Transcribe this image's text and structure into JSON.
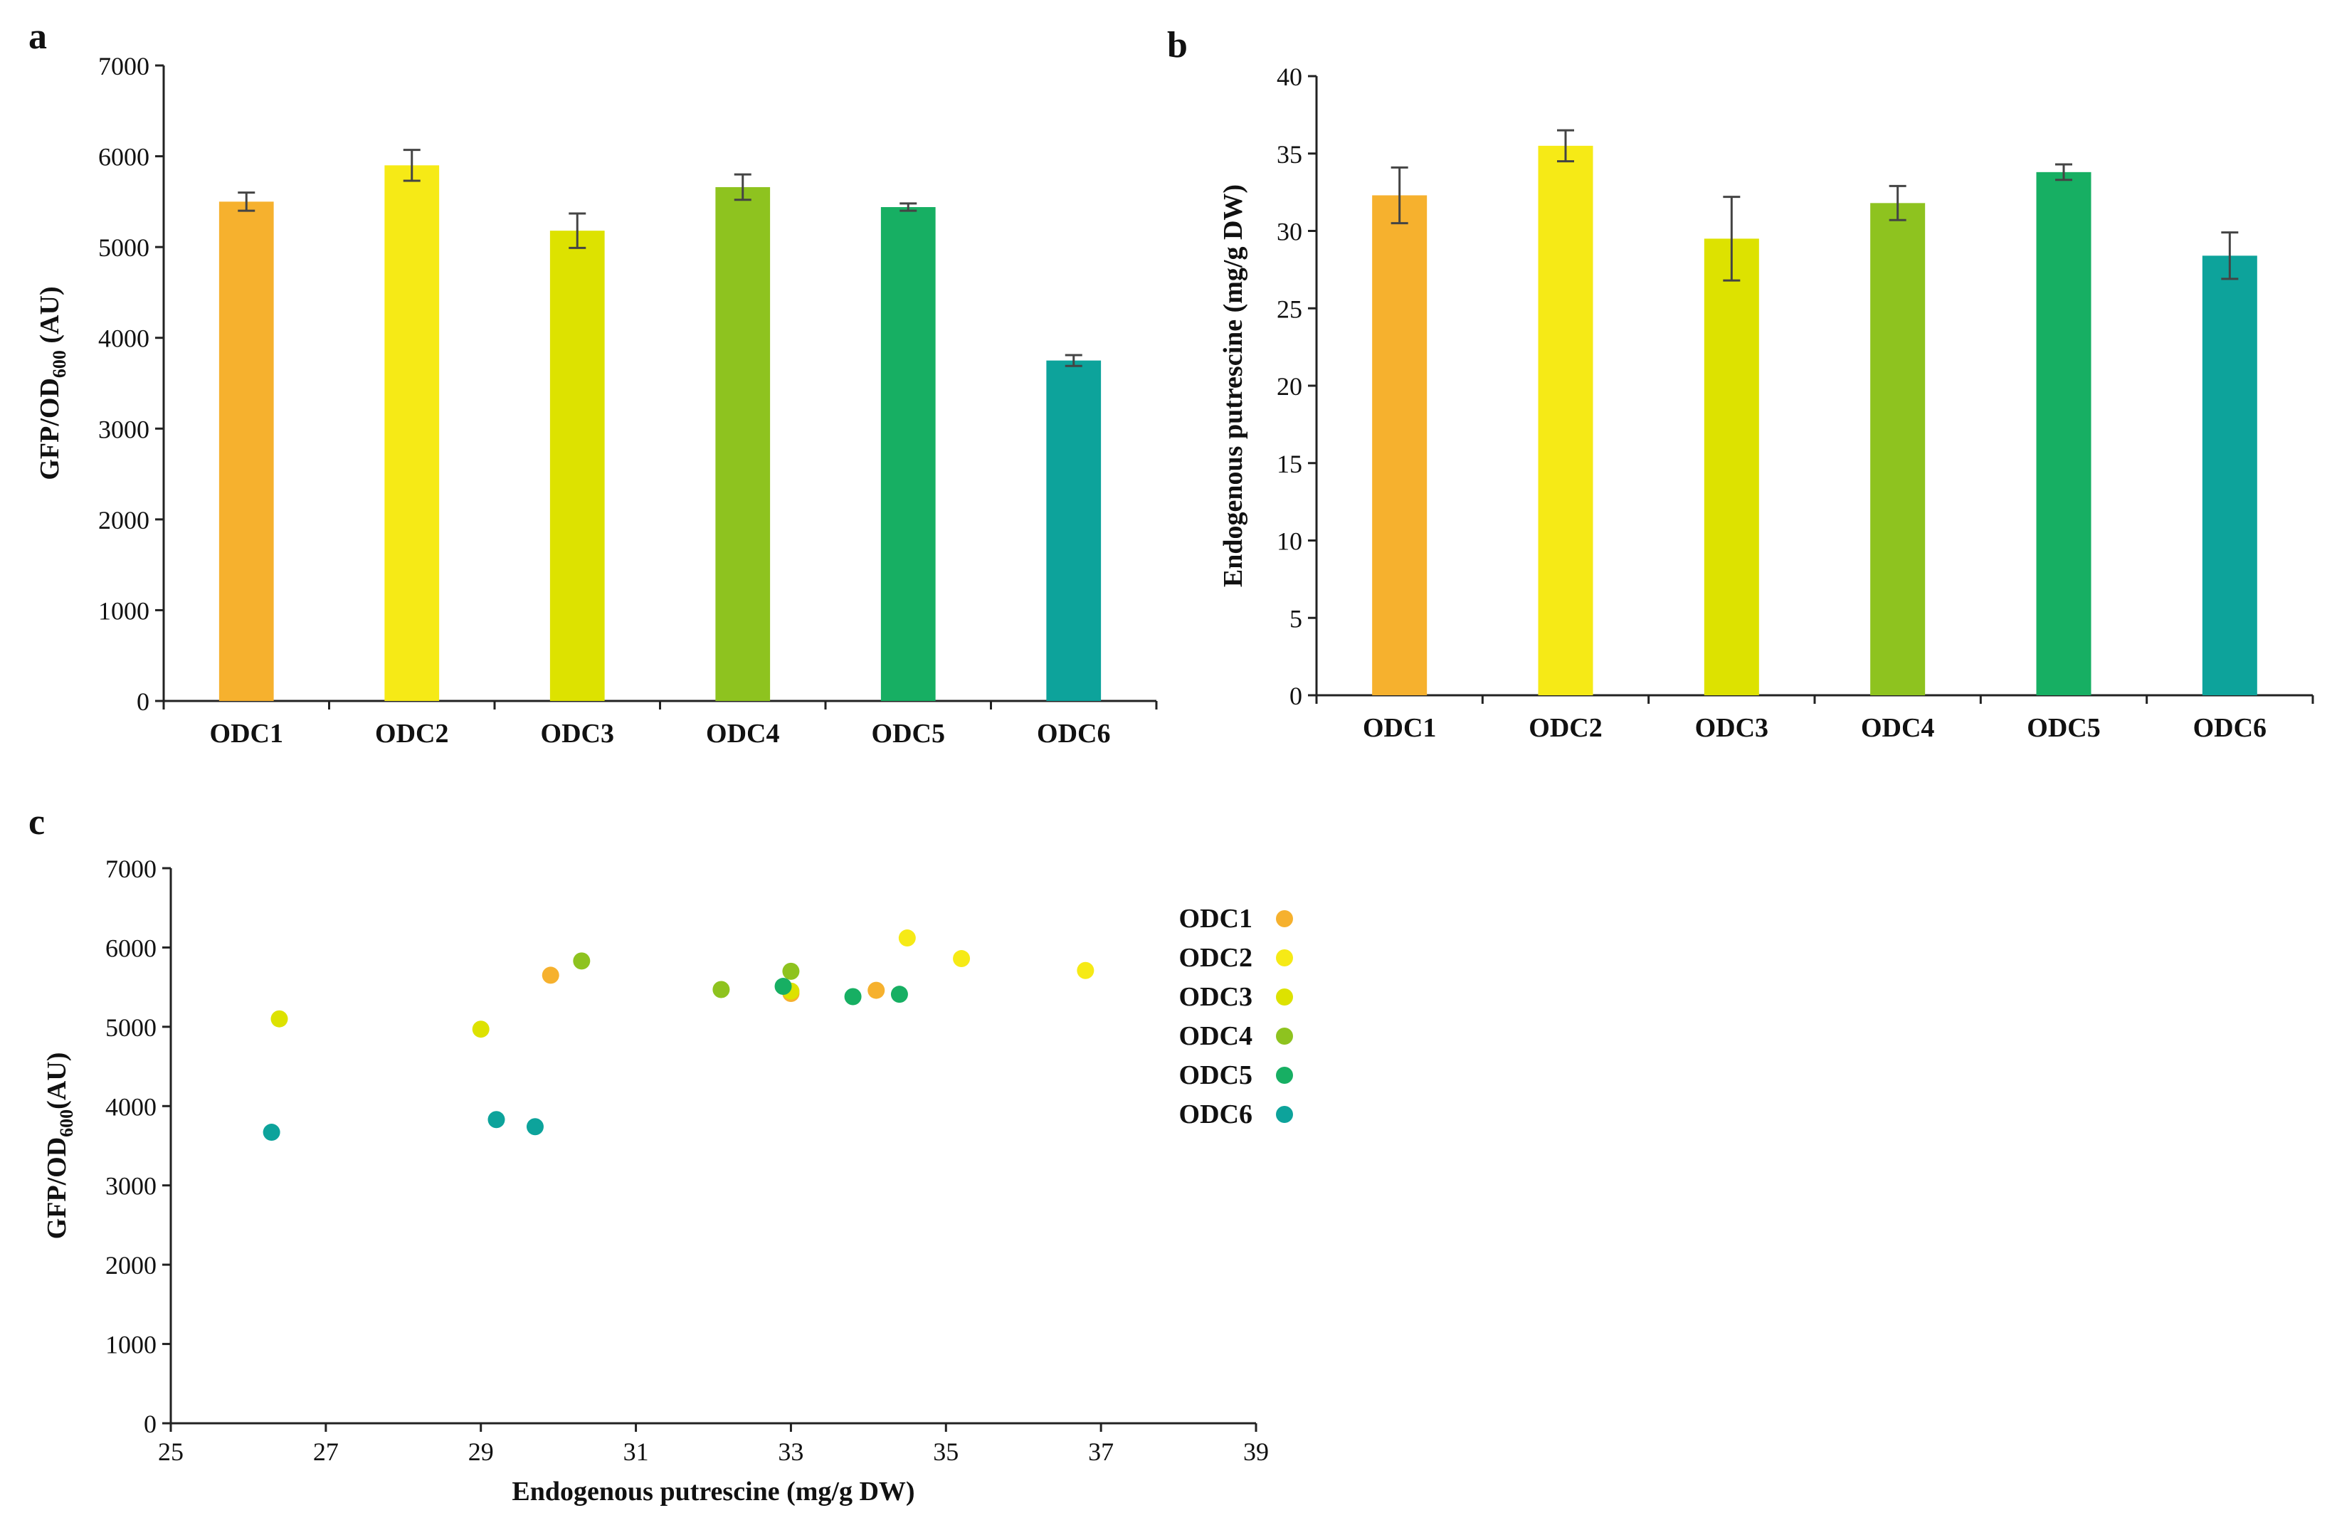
{
  "chart_data": [
    {
      "panel": "a",
      "type": "bar",
      "categories": [
        "ODC1",
        "ODC2",
        "ODC3",
        "ODC4",
        "ODC5",
        "ODC6"
      ],
      "values": [
        5500,
        5900,
        5180,
        5660,
        5440,
        3750
      ],
      "errors": [
        100,
        170,
        190,
        140,
        40,
        60
      ],
      "colors": [
        "#F6B12E",
        "#F6EA16",
        "#DDE200",
        "#8EC31F",
        "#17AF63",
        "#0DA39B"
      ],
      "ylabel_main": "GFP/OD",
      "ylabel_sub": "600",
      "ylabel_tail": " (AU)",
      "xlabel": "",
      "ylim": [
        0,
        7000
      ],
      "yticks": [
        0,
        1000,
        2000,
        3000,
        4000,
        5000,
        6000,
        7000
      ]
    },
    {
      "panel": "b",
      "type": "bar",
      "categories": [
        "ODC1",
        "ODC2",
        "ODC3",
        "ODC4",
        "ODC5",
        "ODC6"
      ],
      "values": [
        32.3,
        35.5,
        29.5,
        31.8,
        33.8,
        28.4
      ],
      "errors": [
        1.8,
        1.0,
        2.7,
        1.1,
        0.5,
        1.5
      ],
      "colors": [
        "#F6B12E",
        "#F6EA16",
        "#DDE200",
        "#8EC31F",
        "#17AF63",
        "#0DA39B"
      ],
      "ylabel": "Endogenous putrescine (mg/g DW)",
      "xlabel": "",
      "ylim": [
        0,
        40
      ],
      "yticks": [
        0,
        5,
        10,
        15,
        20,
        25,
        30,
        35,
        40
      ]
    },
    {
      "panel": "c",
      "type": "scatter",
      "xlabel": "Endogenous putrescine (mg/g DW)",
      "ylabel_main": "GFP/OD",
      "ylabel_sub": "600",
      "ylabel_tail": "(AU)",
      "xlim": [
        25,
        39
      ],
      "xticks": [
        25,
        27,
        29,
        31,
        33,
        35,
        37,
        39
      ],
      "ylim": [
        0,
        7000
      ],
      "yticks": [
        0,
        1000,
        2000,
        3000,
        4000,
        5000,
        6000,
        7000
      ],
      "legend_position": "right",
      "series": [
        {
          "name": "ODC1",
          "color": "#F6B12E",
          "points": [
            [
              29.9,
              5650
            ],
            [
              33.0,
              5420
            ],
            [
              34.1,
              5460
            ]
          ]
        },
        {
          "name": "ODC2",
          "color": "#F6EA16",
          "points": [
            [
              34.5,
              6120
            ],
            [
              35.2,
              5860
            ],
            [
              36.8,
              5710
            ]
          ]
        },
        {
          "name": "ODC3",
          "color": "#DDE200",
          "points": [
            [
              26.4,
              5100
            ],
            [
              29.0,
              4970
            ],
            [
              33.0,
              5450
            ]
          ]
        },
        {
          "name": "ODC4",
          "color": "#8EC31F",
          "points": [
            [
              30.3,
              5830
            ],
            [
              32.1,
              5470
            ],
            [
              33.0,
              5700
            ]
          ]
        },
        {
          "name": "ODC5",
          "color": "#17AF63",
          "points": [
            [
              32.9,
              5510
            ],
            [
              33.8,
              5380
            ],
            [
              34.4,
              5410
            ]
          ]
        },
        {
          "name": "ODC6",
          "color": "#0DA39B",
          "points": [
            [
              26.3,
              3670
            ],
            [
              29.2,
              3830
            ],
            [
              29.7,
              3740
            ]
          ]
        }
      ]
    }
  ],
  "panel_letters": {
    "a": "a",
    "b": "b",
    "c": "c"
  }
}
